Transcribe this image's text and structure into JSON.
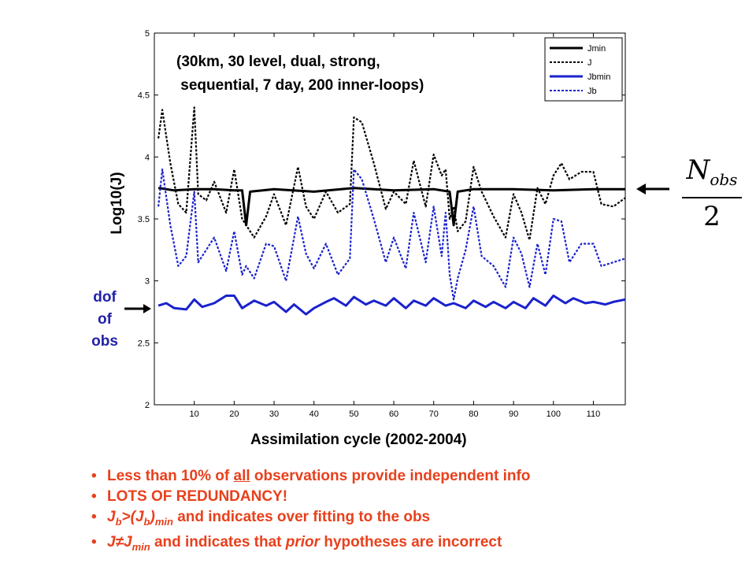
{
  "chart_data": {
    "type": "line",
    "title": "(30km, 30 level, dual, strong,\n sequential, 7 day, 200 inner-loops)",
    "title_lines": [
      "(30km, 30 level, dual, strong,",
      " sequential, 7 day, 200 inner-loops)"
    ],
    "xlabel": "Assimilation cycle (2002-2004)",
    "ylabel": "Log10(J)",
    "xlim": [
      0,
      118
    ],
    "ylim": [
      2,
      5
    ],
    "xticks": [
      10,
      20,
      30,
      40,
      50,
      60,
      70,
      80,
      90,
      100,
      110
    ],
    "yticks": [
      2,
      2.5,
      3,
      3.5,
      4,
      4.5,
      5
    ],
    "grid": false,
    "legend_position": "top-right",
    "series": [
      {
        "name": "Jmin",
        "color": "#000000",
        "style": "solid",
        "x": [
          1,
          5,
          10,
          15,
          20,
          22,
          23,
          24,
          30,
          40,
          50,
          60,
          70,
          74,
          75,
          76,
          80,
          90,
          100,
          110,
          118
        ],
        "y": [
          3.75,
          3.73,
          3.74,
          3.74,
          3.73,
          3.73,
          3.45,
          3.72,
          3.74,
          3.72,
          3.75,
          3.73,
          3.74,
          3.72,
          3.45,
          3.72,
          3.74,
          3.74,
          3.73,
          3.74,
          3.74
        ]
      },
      {
        "name": "J",
        "color": "#000000",
        "style": "dashed",
        "x": [
          1,
          2,
          4,
          6,
          8,
          10,
          11,
          13,
          15,
          18,
          20,
          22,
          23,
          25,
          28,
          30,
          33,
          36,
          38,
          40,
          43,
          46,
          49,
          50,
          52,
          55,
          58,
          60,
          63,
          65,
          68,
          70,
          72,
          73,
          74,
          75,
          76,
          78,
          80,
          82,
          85,
          88,
          90,
          92,
          94,
          96,
          98,
          100,
          102,
          104,
          107,
          110,
          112,
          115,
          118
        ],
        "y": [
          4.15,
          4.38,
          3.95,
          3.62,
          3.55,
          4.4,
          3.7,
          3.65,
          3.8,
          3.55,
          3.9,
          3.5,
          3.45,
          3.35,
          3.52,
          3.7,
          3.45,
          3.92,
          3.6,
          3.5,
          3.72,
          3.55,
          3.62,
          4.32,
          4.28,
          3.95,
          3.58,
          3.72,
          3.62,
          3.97,
          3.6,
          4.02,
          3.85,
          3.9,
          3.5,
          3.6,
          3.4,
          3.48,
          3.92,
          3.72,
          3.52,
          3.35,
          3.7,
          3.55,
          3.33,
          3.75,
          3.62,
          3.85,
          3.95,
          3.82,
          3.88,
          3.88,
          3.62,
          3.6,
          3.67
        ]
      },
      {
        "name": "Jbmin",
        "color": "#1a22cc",
        "style": "solid",
        "x": [
          1,
          3,
          5,
          8,
          10,
          12,
          15,
          18,
          20,
          22,
          25,
          28,
          30,
          33,
          35,
          38,
          40,
          43,
          45,
          48,
          50,
          53,
          55,
          58,
          60,
          63,
          65,
          68,
          70,
          73,
          75,
          78,
          80,
          83,
          85,
          88,
          90,
          93,
          95,
          98,
          100,
          103,
          105,
          108,
          110,
          113,
          115,
          118
        ],
        "y": [
          2.8,
          2.82,
          2.78,
          2.77,
          2.85,
          2.79,
          2.82,
          2.88,
          2.88,
          2.78,
          2.84,
          2.8,
          2.83,
          2.75,
          2.81,
          2.73,
          2.78,
          2.83,
          2.86,
          2.8,
          2.87,
          2.81,
          2.84,
          2.8,
          2.86,
          2.78,
          2.84,
          2.8,
          2.86,
          2.8,
          2.82,
          2.78,
          2.84,
          2.79,
          2.83,
          2.78,
          2.83,
          2.78,
          2.86,
          2.8,
          2.88,
          2.82,
          2.86,
          2.82,
          2.83,
          2.81,
          2.83,
          2.85
        ]
      },
      {
        "name": "Jb",
        "color": "#1a22cc",
        "style": "dashed",
        "x": [
          1,
          2,
          4,
          6,
          8,
          10,
          11,
          13,
          15,
          18,
          20,
          22,
          23,
          25,
          28,
          30,
          33,
          36,
          38,
          40,
          43,
          46,
          49,
          50,
          52,
          55,
          58,
          60,
          63,
          65,
          68,
          70,
          72,
          73,
          74,
          75,
          76,
          78,
          80,
          82,
          85,
          88,
          90,
          92,
          94,
          96,
          98,
          100,
          102,
          104,
          107,
          110,
          112,
          115,
          118
        ],
        "y": [
          3.6,
          3.9,
          3.45,
          3.12,
          3.2,
          3.72,
          3.15,
          3.25,
          3.35,
          3.08,
          3.4,
          3.05,
          3.12,
          3.02,
          3.3,
          3.28,
          3.0,
          3.52,
          3.22,
          3.1,
          3.3,
          3.05,
          3.18,
          3.9,
          3.82,
          3.5,
          3.15,
          3.35,
          3.1,
          3.55,
          3.15,
          3.6,
          3.2,
          3.55,
          3.05,
          2.85,
          3.02,
          3.25,
          3.6,
          3.2,
          3.12,
          2.95,
          3.35,
          3.22,
          2.95,
          3.3,
          3.05,
          3.5,
          3.48,
          3.15,
          3.3,
          3.3,
          3.12,
          3.15,
          3.18
        ]
      }
    ]
  },
  "annotations": {
    "dof_lines": [
      "dof",
      "of",
      "obs"
    ],
    "fraction_symbol": "N",
    "fraction_subscript": "obs",
    "fraction_denominator": "2",
    "arrow_color": "#000000"
  },
  "bullets": [
    {
      "id": "b1",
      "parts": [
        {
          "t": "Less than 10% of "
        },
        {
          "t": "all",
          "u": true
        },
        {
          "t": " observations provide independent info"
        }
      ]
    },
    {
      "id": "b2",
      "parts": [
        {
          "t": "LOTS OF REDUNDANCY!"
        }
      ]
    },
    {
      "id": "b3",
      "parts": [
        {
          "t": "J",
          "i": true
        },
        {
          "t": "b",
          "sub": true,
          "i": true
        },
        {
          "t": ">(J",
          "i": true
        },
        {
          "t": "b",
          "sub": true,
          "i": true
        },
        {
          "t": ")",
          "i": true
        },
        {
          "t": "min",
          "sub": true,
          "i": true
        },
        {
          "t": "  and indicates over fitting to the obs"
        }
      ]
    },
    {
      "id": "b4",
      "parts": [
        {
          "t": "J≠J",
          "i": true
        },
        {
          "t": "min",
          "sub": true,
          "i": true
        },
        {
          "t": " and indicates that "
        },
        {
          "t": "prior",
          "i": true
        },
        {
          "t": " hypotheses are incorrect"
        }
      ]
    }
  ],
  "colors": {
    "bullet_text": "#e8401c",
    "dof_text": "#2222aa",
    "series_blue": "#1a22cc"
  }
}
